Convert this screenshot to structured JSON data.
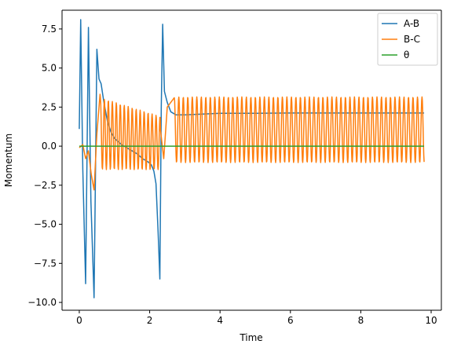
{
  "chart_data": {
    "type": "line",
    "xlabel": "Time",
    "ylabel": "Momentum",
    "xlim": [
      -0.49,
      10.29
    ],
    "ylim": [
      -10.5,
      8.7
    ],
    "xticks": [
      0,
      2,
      4,
      6,
      8,
      10
    ],
    "xtick_labels": [
      "0",
      "2",
      "4",
      "6",
      "8",
      "10"
    ],
    "yticks": [
      -10.0,
      -7.5,
      -5.0,
      -2.5,
      0.0,
      2.5,
      5.0,
      7.5
    ],
    "ytick_labels": [
      "−10.0",
      "−7.5",
      "−5.0",
      "−2.5",
      "0.0",
      "2.5",
      "5.0",
      "7.5"
    ],
    "grid": false,
    "legend_position": "top-right",
    "series": [
      {
        "name": "A-B",
        "color": "#1f77b4",
        "x": [
          0.0,
          0.04,
          0.1,
          0.18,
          0.26,
          0.33,
          0.42,
          0.5,
          0.56,
          0.62,
          0.7,
          0.8,
          0.9,
          1.0,
          1.1,
          1.2,
          1.35,
          1.5,
          1.65,
          1.8,
          1.95,
          2.05,
          2.12,
          2.18,
          2.24,
          2.29,
          2.33,
          2.37,
          2.42,
          2.5,
          2.6,
          2.75,
          3.0,
          3.5,
          4.0,
          5.0,
          6.0,
          7.0,
          8.0,
          9.0,
          9.8
        ],
        "y": [
          1.1,
          8.1,
          -1.5,
          -8.8,
          7.6,
          -3.5,
          -9.7,
          6.2,
          4.3,
          4.0,
          2.8,
          1.6,
          0.9,
          0.5,
          0.3,
          0.1,
          -0.1,
          -0.3,
          -0.5,
          -0.8,
          -1.0,
          -1.2,
          -1.6,
          -2.4,
          -5.5,
          -8.5,
          2.5,
          7.8,
          3.5,
          2.8,
          2.2,
          2.0,
          2.0,
          2.05,
          2.1,
          2.1,
          2.12,
          2.12,
          2.12,
          2.12,
          2.12
        ]
      },
      {
        "name": "B-C",
        "color": "#ff7f0e",
        "x": [
          0.0,
          0.1,
          0.18,
          0.26,
          0.34,
          0.42,
          0.5,
          0.6,
          2.3,
          2.4,
          2.5,
          2.7,
          9.8
        ],
        "y": [
          -0.1,
          0.1,
          -0.8,
          -0.3,
          -1.8,
          -2.8,
          0.8,
          3.6,
          1.2,
          -0.8,
          2.5,
          3.1,
          -1.0
        ]
      },
      {
        "name": "θ",
        "color": "#2ca02c",
        "x": [
          0.0,
          9.8
        ],
        "y": [
          0.0,
          0.0
        ]
      }
    ]
  }
}
